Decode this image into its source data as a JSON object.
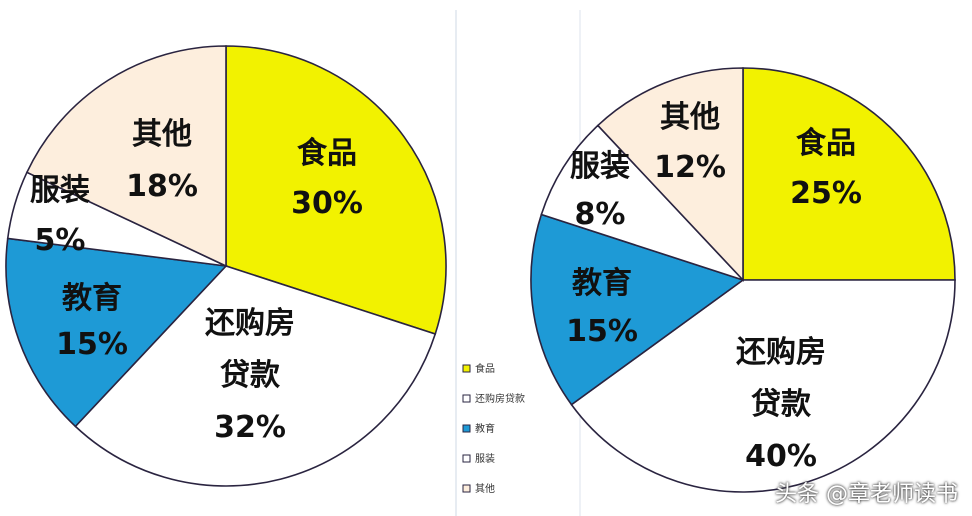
{
  "chart_data": [
    {
      "type": "pie",
      "title": "",
      "slices": [
        {
          "label_lines": [
            "食品"
          ],
          "value": 30,
          "value_label": "30%",
          "color": "#f2f200"
        },
        {
          "label_lines": [
            "还购房",
            "贷款"
          ],
          "value": 32,
          "value_label": "32%",
          "color": "#ffffff"
        },
        {
          "label_lines": [
            "教育"
          ],
          "value": 15,
          "value_label": "15%",
          "color": "#1e9ad6"
        },
        {
          "label_lines": [
            "服装"
          ],
          "value": 5,
          "value_label": "5%",
          "color": "#ffffff"
        },
        {
          "label_lines": [
            "其他"
          ],
          "value": 18,
          "value_label": "18%",
          "color": "#fdeedd"
        }
      ]
    },
    {
      "type": "pie",
      "title": "",
      "slices": [
        {
          "label_lines": [
            "食品"
          ],
          "value": 25,
          "value_label": "25%",
          "color": "#f2f200"
        },
        {
          "label_lines": [
            "还购房",
            "贷款"
          ],
          "value": 40,
          "value_label": "40%",
          "color": "#ffffff"
        },
        {
          "label_lines": [
            "教育"
          ],
          "value": 15,
          "value_label": "15%",
          "color": "#1e9ad6"
        },
        {
          "label_lines": [
            "服装"
          ],
          "value": 8,
          "value_label": "8%",
          "color": "#ffffff"
        },
        {
          "label_lines": [
            "其他"
          ],
          "value": 12,
          "value_label": "12%",
          "color": "#fdeedd"
        }
      ]
    }
  ],
  "legend": {
    "placement": "center-right of left chart",
    "items": [
      {
        "label": "食品",
        "color": "#f2f200"
      },
      {
        "label": "还购房贷款",
        "color": "#ffffff"
      },
      {
        "label": "教育",
        "color": "#1e9ad6"
      },
      {
        "label": "服装",
        "color": "#ffffff"
      },
      {
        "label": "其他",
        "color": "#fdeedd"
      }
    ]
  },
  "watermark": "头条 @章老师读书",
  "colors": {
    "outline": "#2a2440",
    "divider": "#cfd8e6"
  }
}
